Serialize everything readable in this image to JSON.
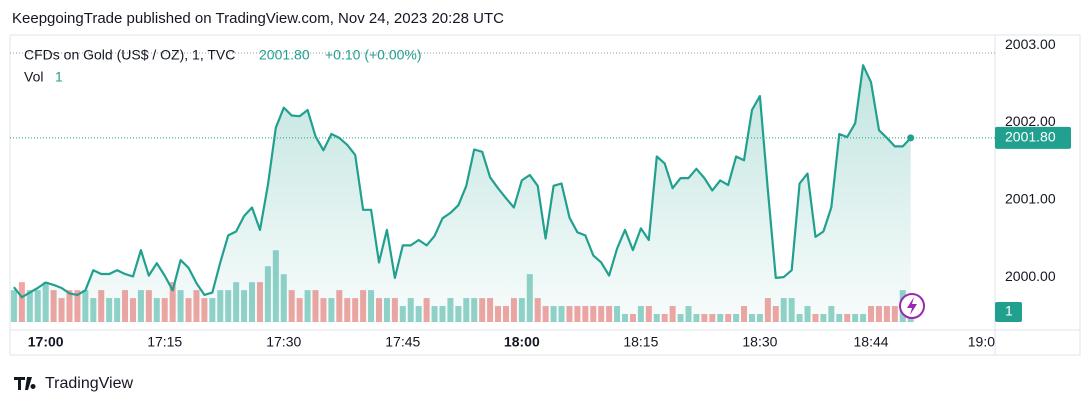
{
  "header": {
    "byline": "KeepgoingTrade published on TradingView.com, Nov 24, 2023 20:28 UTC",
    "symbol": "CFDs on Gold (US$ / OZ), 1, TVC",
    "last": "2001.80",
    "change": "+0.10 (+0.00%)",
    "volume_label": "Vol",
    "volume_last": "1"
  },
  "footer": {
    "brand": "TradingView"
  },
  "chart_data": {
    "type": "line",
    "x": [
      "16:56",
      "16:57",
      "16:58",
      "16:59",
      "17:00",
      "17:01",
      "17:02",
      "17:03",
      "17:04",
      "17:05",
      "17:06",
      "17:07",
      "17:08",
      "17:09",
      "17:10",
      "17:11",
      "17:12",
      "17:13",
      "17:14",
      "17:15",
      "17:16",
      "17:17",
      "17:18",
      "17:19",
      "17:20",
      "17:21",
      "17:22",
      "17:23",
      "17:24",
      "17:25",
      "17:26",
      "17:27",
      "17:28",
      "17:29",
      "17:30",
      "17:31",
      "17:32",
      "17:33",
      "17:34",
      "17:35",
      "17:36",
      "17:37",
      "17:38",
      "17:39",
      "17:40",
      "17:41",
      "17:42",
      "17:43",
      "17:44",
      "17:45",
      "17:46",
      "17:47",
      "17:48",
      "17:49",
      "17:50",
      "17:51",
      "17:52",
      "17:53",
      "17:54",
      "17:55",
      "17:56",
      "17:57",
      "17:58",
      "17:59",
      "18:00",
      "18:01",
      "18:02",
      "18:03",
      "18:04",
      "18:05",
      "18:06",
      "18:07",
      "18:08",
      "18:09",
      "18:10",
      "18:11",
      "18:12",
      "18:13",
      "18:14",
      "18:15",
      "18:16",
      "18:17",
      "18:18",
      "18:19",
      "18:20",
      "18:21",
      "18:22",
      "18:23",
      "18:24",
      "18:25",
      "18:26",
      "18:27",
      "18:28",
      "18:29",
      "18:30",
      "18:31",
      "18:32",
      "18:33",
      "18:34",
      "18:35",
      "18:36",
      "18:37",
      "18:38",
      "18:39",
      "18:40",
      "18:41",
      "18:42",
      "18:43",
      "18:44",
      "18:45",
      "18:46",
      "18:47",
      "18:48",
      "18:49"
    ],
    "series": [
      {
        "name": "CFDs on Gold (US$ / OZ), 1, TVC",
        "color": "#22a08f",
        "values": [
          1999.87,
          1999.74,
          1999.8,
          1999.86,
          1999.93,
          1999.9,
          1999.86,
          1999.79,
          1999.77,
          1999.83,
          2000.09,
          2000.04,
          2000.04,
          2000.09,
          2000.04,
          2000.01,
          2000.35,
          2000.02,
          2000.18,
          2000.02,
          1999.83,
          2000.22,
          2000.12,
          1999.92,
          1999.77,
          1999.8,
          2000.19,
          2000.54,
          2000.59,
          2000.79,
          2000.9,
          2000.61,
          2001.19,
          2001.93,
          2002.19,
          2002.09,
          2002.08,
          2002.16,
          2001.82,
          2001.64,
          2001.85,
          2001.8,
          2001.71,
          2001.58,
          2000.87,
          2000.87,
          2000.19,
          2000.61,
          1999.99,
          2000.41,
          2000.41,
          2000.48,
          2000.41,
          2000.53,
          2000.76,
          2000.83,
          2000.93,
          2001.18,
          2001.65,
          2001.62,
          2001.29,
          2001.15,
          2001.02,
          2000.9,
          2001.25,
          2001.32,
          2001.18,
          2000.5,
          2001.18,
          2001.21,
          2000.77,
          2000.58,
          2000.54,
          2000.28,
          2000.19,
          2000.02,
          2000.37,
          2000.61,
          2000.35,
          2000.63,
          2000.48,
          2001.56,
          2001.47,
          2001.15,
          2001.28,
          2001.28,
          2001.4,
          2001.28,
          2001.12,
          2001.25,
          2001.19,
          2001.56,
          2001.51,
          2002.16,
          2002.34,
          2001.12,
          1999.99,
          2000,
          2000.09,
          2001.21,
          2001.34,
          2000.52,
          2000.59,
          2000.9,
          2001.85,
          2001.81,
          2001.99,
          2002.74,
          2002.52,
          2001.9,
          2001.8,
          2001.69,
          2001.69,
          2001.8
        ]
      },
      {
        "name": "Vol",
        "up_color": "#93d3c9",
        "down_color": "#f2a5a3",
        "axis": "volume",
        "values": [
          4,
          5,
          4,
          4,
          5,
          4,
          3,
          4,
          4,
          4,
          3,
          4,
          3,
          3,
          4,
          3,
          4,
          4,
          3,
          3,
          5,
          4,
          3,
          4,
          3,
          3,
          4,
          4,
          5,
          4,
          5,
          5,
          7,
          9,
          6,
          4,
          3,
          4,
          4,
          3,
          3,
          4,
          3,
          3,
          4,
          4,
          3,
          3,
          3,
          2,
          3,
          2,
          3,
          2,
          2,
          3,
          2,
          3,
          3,
          3,
          3,
          2,
          2,
          3,
          3,
          6,
          3,
          2,
          2,
          2,
          2,
          2,
          2,
          2,
          2,
          2,
          2,
          1,
          1,
          2,
          2,
          1,
          1,
          2,
          1,
          2,
          1,
          1,
          1,
          1,
          1,
          1,
          2,
          1,
          1,
          3,
          2,
          3,
          3,
          1,
          2,
          1,
          1,
          2,
          1,
          1,
          1,
          1,
          2,
          2,
          2,
          2,
          4,
          1
        ]
      }
    ],
    "xlim": [
      "16:55",
      "19:00"
    ],
    "xticks": [
      "17:00",
      "17:15",
      "17:30",
      "17:45",
      "18:00",
      "18:15",
      "18:30",
      "18:44",
      {
        "value": "19:00",
        "label": "19:0"
      }
    ],
    "ylim": [
      1999.42,
      2003.13
    ],
    "yticks": [
      {
        "value": 2000,
        "label": "2000.00"
      },
      {
        "value": 2001,
        "label": "2001.00"
      },
      {
        "value": 2002,
        "label": "2002.00"
      },
      {
        "value": 2003,
        "label": "2003.00"
      }
    ],
    "volume_lim": [
      0,
      36
    ]
  }
}
